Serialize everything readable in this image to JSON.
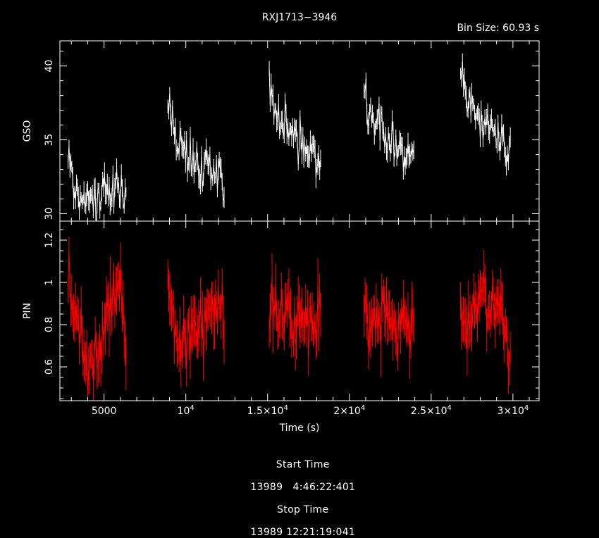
{
  "chart_data": {
    "type": "line",
    "title": "RXJ1713−3946",
    "subtitle": "Bin Size:  60.93  s",
    "xlabel": "Time (s)",
    "x_tick_labels": [
      "5000",
      "10",
      "1.5×10",
      "2×10",
      "2.5×10",
      "3×10"
    ],
    "x_tick_exponent": "4",
    "xlim": [
      2300,
      31600
    ],
    "panels": [
      {
        "ylabel": "GSO",
        "ylim": [
          29.5,
          41.7
        ],
        "y_tick_labels": [
          "30",
          "35",
          "40"
        ],
        "color": "#ffffff",
        "series": [
          {
            "x": [
              2800,
              3200,
              3600,
              4000,
              4400,
              4800,
              5200,
              5600,
              6000,
              6400
            ],
            "y": [
              33.8,
              31.6,
              31.0,
              30.8,
              31.0,
              31.2,
              31.3,
              31.5,
              31.8,
              31.3
            ]
          },
          {
            "x": [
              8900,
              9300,
              9700,
              10100,
              10500,
              10900,
              11300,
              11700,
              12100,
              12400
            ],
            "y": [
              36.7,
              35.5,
              34.5,
              33.8,
              33.5,
              33.0,
              33.3,
              32.8,
              33.2,
              30.8
            ]
          },
          {
            "x": [
              15100,
              15500,
              15900,
              16300,
              16700,
              17100,
              17500,
              17900,
              18300
            ],
            "y": [
              39.0,
              36.8,
              36.0,
              35.8,
              35.0,
              34.6,
              34.2,
              34.0,
              33.0
            ]
          },
          {
            "x": [
              20900,
              21300,
              21700,
              22100,
              22500,
              22900,
              23300,
              23700,
              24000
            ],
            "y": [
              38.0,
              36.5,
              36.0,
              35.7,
              35.0,
              34.5,
              34.0,
              33.8,
              33.6
            ]
          },
          {
            "x": [
              26800,
              27200,
              27600,
              28000,
              28400,
              28800,
              29200,
              29600,
              29900
            ],
            "y": [
              39.5,
              37.5,
              36.8,
              36.3,
              35.8,
              35.5,
              35.0,
              34.8,
              34.3
            ]
          }
        ]
      },
      {
        "ylabel": "PIN",
        "ylim": [
          0.44,
          1.29
        ],
        "y_tick_labels": [
          "0.6",
          "0.8",
          "1",
          "1.2"
        ],
        "color": "#ff0000",
        "series": [
          {
            "x": [
              2800,
              3200,
              3600,
              4000,
              4400,
              4800,
              5200,
              5600,
              6000,
              6400
            ],
            "y": [
              1.1,
              0.8,
              0.75,
              0.62,
              0.65,
              0.7,
              0.82,
              0.9,
              0.95,
              0.7
            ]
          },
          {
            "x": [
              8900,
              9300,
              9700,
              10100,
              10500,
              10900,
              11300,
              11700,
              12100,
              12400
            ],
            "y": [
              1.05,
              0.78,
              0.74,
              0.7,
              0.8,
              0.78,
              0.85,
              0.9,
              0.88,
              0.8
            ]
          },
          {
            "x": [
              15100,
              15500,
              15900,
              16300,
              16700,
              17100,
              17500,
              17900,
              18300
            ],
            "y": [
              0.85,
              0.88,
              0.82,
              0.9,
              0.8,
              0.85,
              0.8,
              0.85,
              0.8
            ]
          },
          {
            "x": [
              20900,
              21300,
              21700,
              22100,
              22500,
              22900,
              23300,
              23700,
              24000
            ],
            "y": [
              0.85,
              0.8,
              0.78,
              0.85,
              0.8,
              0.75,
              0.82,
              0.8,
              0.75
            ]
          },
          {
            "x": [
              26800,
              27200,
              27600,
              28000,
              28400,
              28800,
              29200,
              29600,
              29900
            ],
            "y": [
              0.9,
              0.8,
              0.85,
              0.95,
              0.92,
              0.88,
              0.85,
              0.75,
              0.6
            ]
          }
        ]
      }
    ]
  },
  "footer": {
    "start_label": "Start Time",
    "start_value": "13989   4:46:22:401",
    "stop_label": "Stop Time",
    "stop_value": "13989 12:21:19:041"
  }
}
